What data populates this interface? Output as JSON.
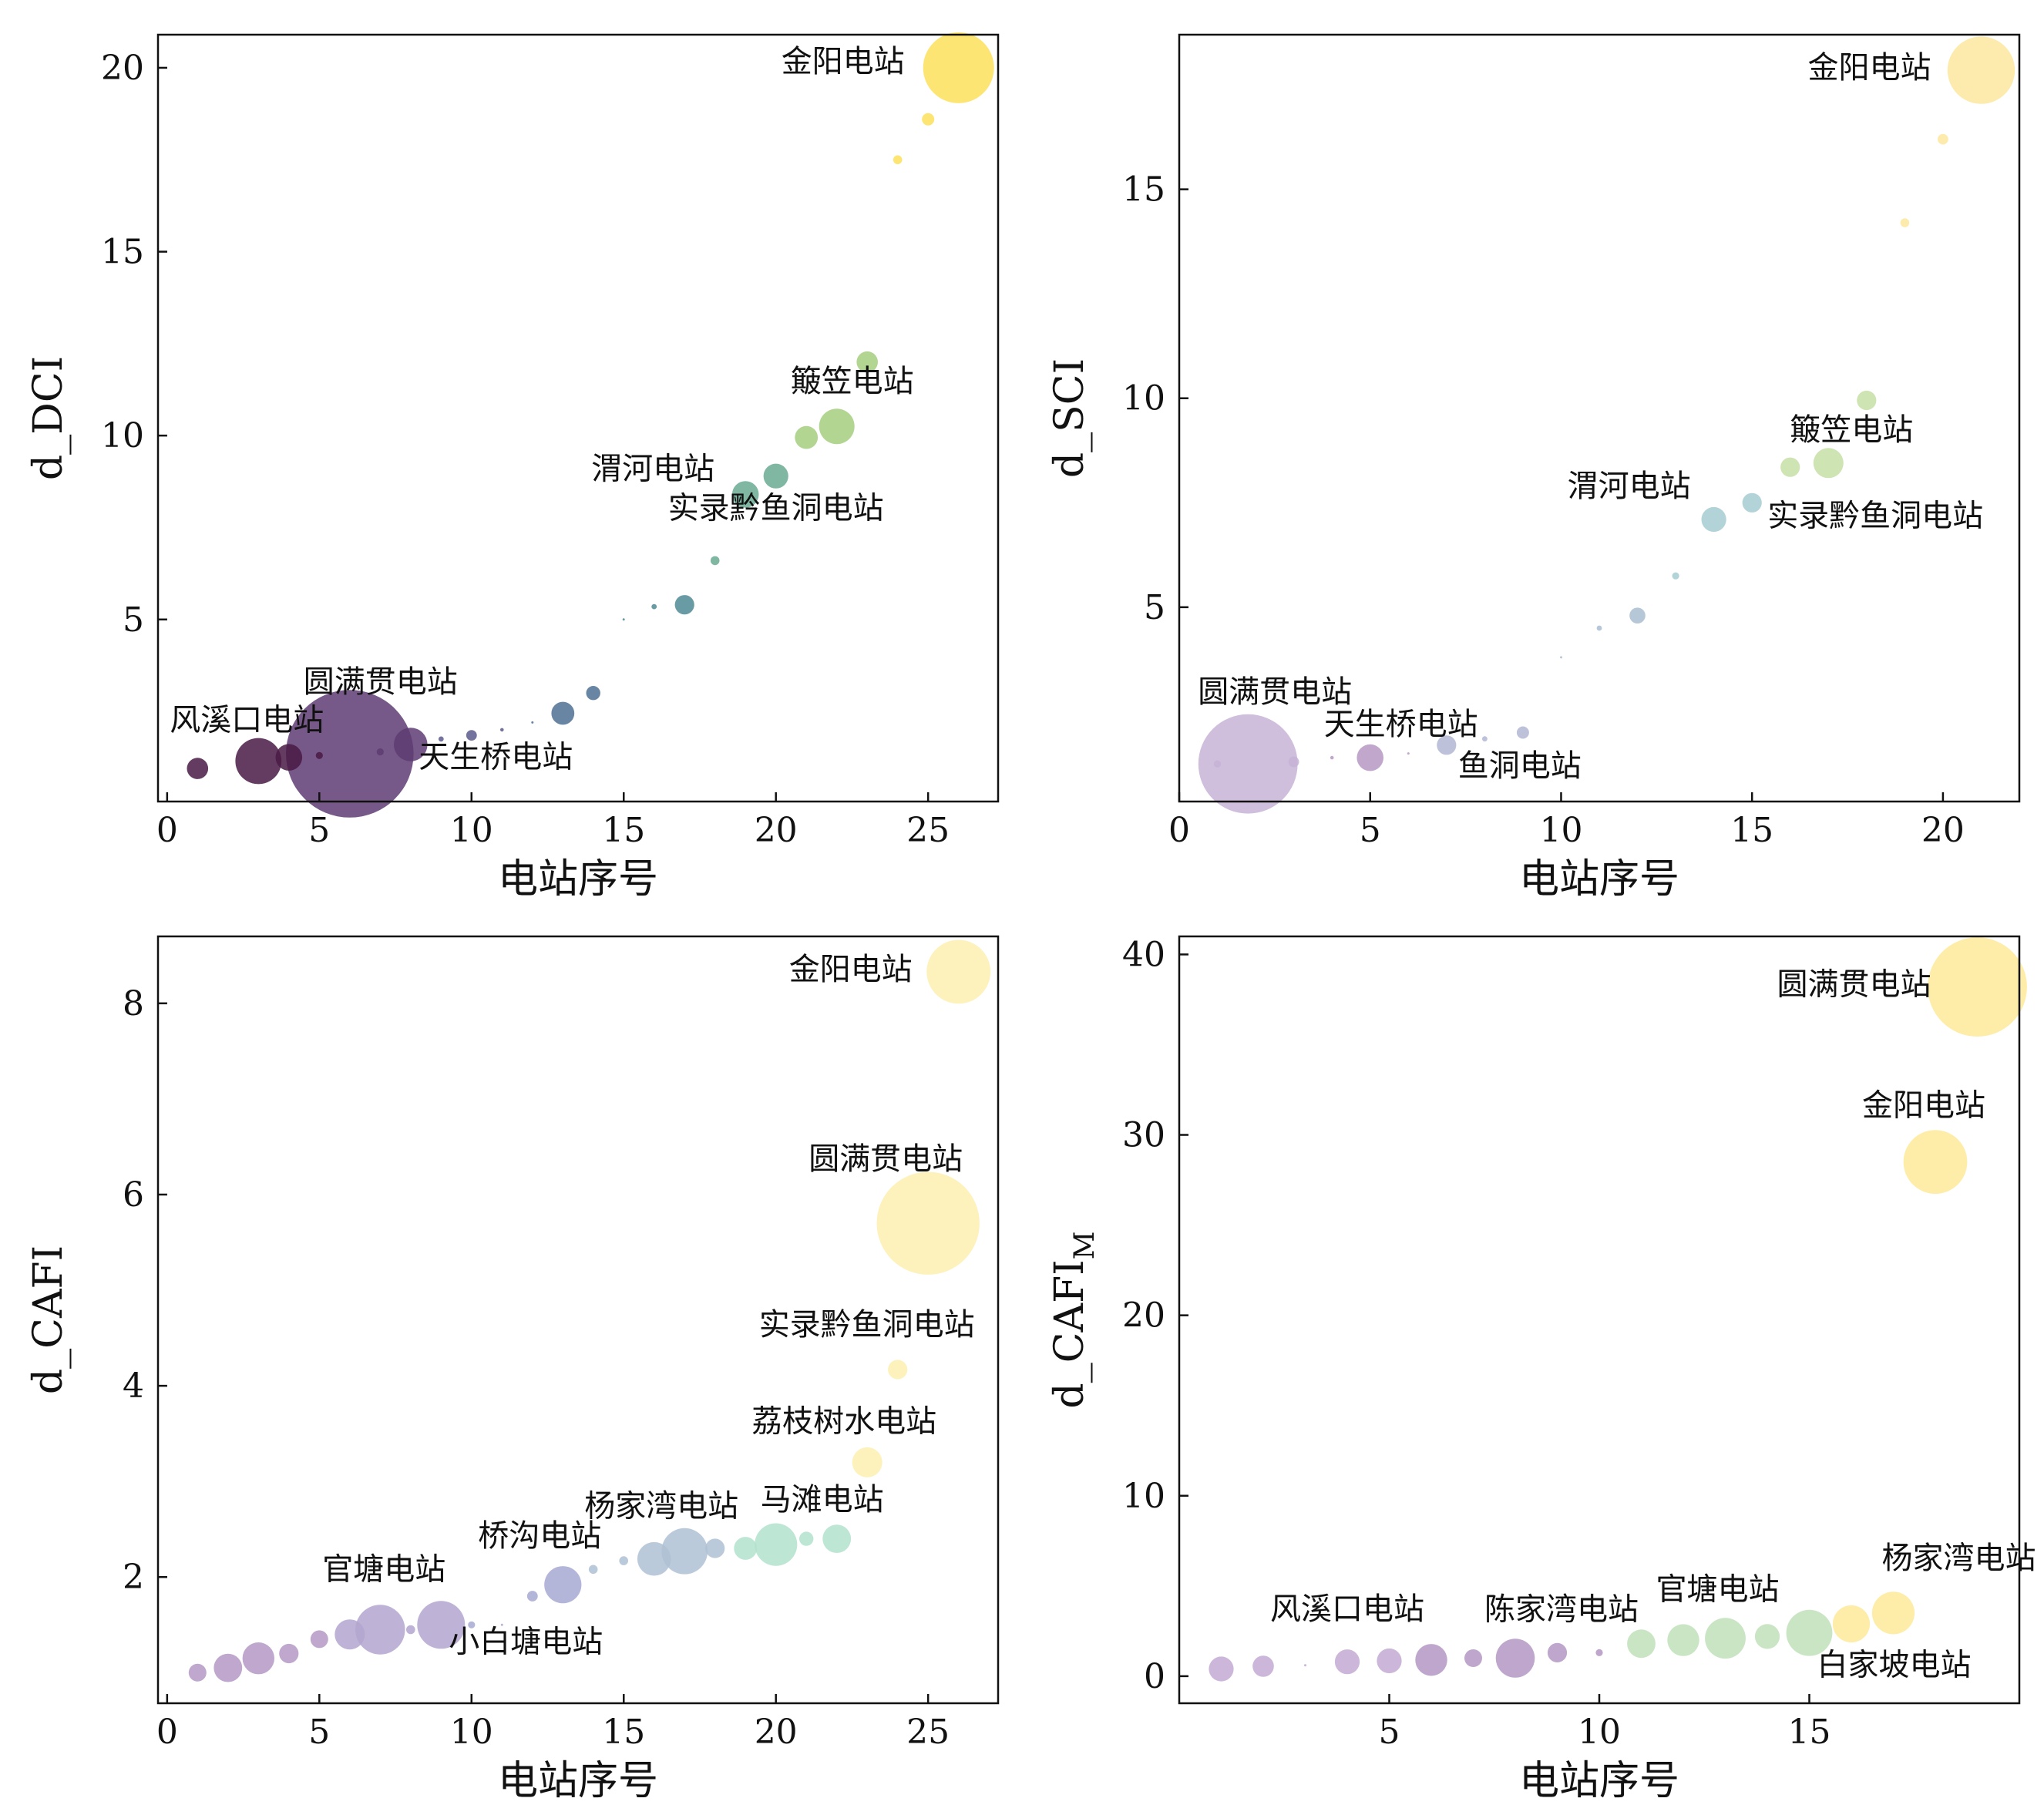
{
  "chart_data": [
    {
      "type": "scatter",
      "xlabel": "电站序号",
      "ylabel": "d_DCI",
      "xlim": [
        -0.3,
        27.3
      ],
      "ylim": [
        0.05,
        20.9
      ],
      "xticks": [
        0,
        5,
        10,
        15,
        20,
        25
      ],
      "yticks": [
        5,
        10,
        15,
        20
      ],
      "colors": [
        "#4a1a45",
        "#5e3c73",
        "#5b5b8c",
        "#4d7193",
        "#4f8a95",
        "#6aaa93",
        "#a5cf7f",
        "#fde05a"
      ],
      "points": [
        {
          "x": 1,
          "y": 0.95,
          "size": 12
        },
        {
          "x": 3,
          "y": 1.15,
          "size": 26
        },
        {
          "x": 4,
          "y": 1.25,
          "size": 15
        },
        {
          "x": 5,
          "y": 1.3,
          "size": 4
        },
        {
          "x": 6,
          "y": 1.35,
          "size": 72
        },
        {
          "x": 7,
          "y": 1.4,
          "size": 4
        },
        {
          "x": 8,
          "y": 1.6,
          "size": 19
        },
        {
          "x": 9,
          "y": 1.75,
          "size": 3
        },
        {
          "x": 10,
          "y": 1.85,
          "size": 6
        },
        {
          "x": 11,
          "y": 2.0,
          "size": 2
        },
        {
          "x": 12,
          "y": 2.2,
          "size": 1
        },
        {
          "x": 13,
          "y": 2.45,
          "size": 13
        },
        {
          "x": 14,
          "y": 3.0,
          "size": 8
        },
        {
          "x": 15,
          "y": 5.0,
          "size": 1
        },
        {
          "x": 16,
          "y": 5.35,
          "size": 3
        },
        {
          "x": 17,
          "y": 5.4,
          "size": 11
        },
        {
          "x": 18,
          "y": 6.6,
          "size": 5
        },
        {
          "x": 19,
          "y": 8.4,
          "size": 15
        },
        {
          "x": 20,
          "y": 8.9,
          "size": 14
        },
        {
          "x": 21,
          "y": 9.95,
          "size": 13
        },
        {
          "x": 22,
          "y": 10.25,
          "size": 20
        },
        {
          "x": 23,
          "y": 12.0,
          "size": 12
        },
        {
          "x": 24,
          "y": 17.5,
          "size": 5
        },
        {
          "x": 25,
          "y": 18.6,
          "size": 7
        },
        {
          "x": 26,
          "y": 20.0,
          "size": 40
        }
      ],
      "annotations": [
        {
          "text": "金阳电站",
          "x": 26,
          "y": 20.0
        },
        {
          "text": "簸笠电站",
          "x": 22,
          "y": 10.25
        },
        {
          "text": "渭河电站",
          "x": 19,
          "y": 8.4
        },
        {
          "text": "实录黔鱼洞电站",
          "x": 20,
          "y": 8.9
        },
        {
          "text": "圆满贯电站",
          "x": 6,
          "y": 1.35
        },
        {
          "text": "风溪口电站",
          "x": 3,
          "y": 1.15
        },
        {
          "text": "天生桥电站",
          "x": 7,
          "y": 1.4
        }
      ]
    },
    {
      "type": "scatter",
      "xlabel": "电站序号",
      "ylabel": "d_SCI",
      "xlim": [
        0,
        22
      ],
      "ylim": [
        0.35,
        18.7
      ],
      "xticks": [
        0,
        5,
        10,
        15,
        20
      ],
      "yticks": [
        5,
        10,
        15
      ],
      "colors": [
        "#c7b3d6",
        "#b798c4",
        "#b3b6d4",
        "#a9bdd1",
        "#a5cbd0",
        "#c5dfa6",
        "#fde7a0"
      ],
      "points": [
        {
          "x": 1,
          "y": 1.25,
          "size": 4
        },
        {
          "x": 1.8,
          "y": 1.25,
          "size": 56
        },
        {
          "x": 3,
          "y": 1.3,
          "size": 6
        },
        {
          "x": 4,
          "y": 1.4,
          "size": 2
        },
        {
          "x": 5,
          "y": 1.4,
          "size": 15
        },
        {
          "x": 6,
          "y": 1.5,
          "size": 1
        },
        {
          "x": 7,
          "y": 1.7,
          "size": 11
        },
        {
          "x": 8,
          "y": 1.85,
          "size": 3
        },
        {
          "x": 9,
          "y": 2.0,
          "size": 7
        },
        {
          "x": 10,
          "y": 3.8,
          "size": 1
        },
        {
          "x": 11,
          "y": 4.5,
          "size": 3
        },
        {
          "x": 12,
          "y": 4.8,
          "size": 9
        },
        {
          "x": 13,
          "y": 5.75,
          "size": 4
        },
        {
          "x": 14,
          "y": 7.1,
          "size": 14
        },
        {
          "x": 15,
          "y": 7.5,
          "size": 11
        },
        {
          "x": 16,
          "y": 8.35,
          "size": 11
        },
        {
          "x": 17,
          "y": 8.45,
          "size": 17
        },
        {
          "x": 18,
          "y": 9.95,
          "size": 11
        },
        {
          "x": 19,
          "y": 14.2,
          "size": 5
        },
        {
          "x": 20,
          "y": 16.2,
          "size": 6
        },
        {
          "x": 21,
          "y": 17.85,
          "size": 38
        }
      ],
      "annotations": [
        {
          "text": "金阳电站",
          "x": 21,
          "y": 17.85
        },
        {
          "text": "簸笠电站",
          "x": 17,
          "y": 8.45
        },
        {
          "text": "渭河电站",
          "x": 14,
          "y": 7.1
        },
        {
          "text": "实录黔鱼洞电站",
          "x": 15,
          "y": 7.5
        },
        {
          "text": "圆满贯电站",
          "x": 1.8,
          "y": 1.25
        },
        {
          "text": "天生桥电站",
          "x": 5,
          "y": 1.4
        },
        {
          "text": "鱼洞电站",
          "x": 7,
          "y": 1.7
        }
      ]
    },
    {
      "type": "scatter",
      "xlabel": "电站序号",
      "ylabel": "d_CAFI",
      "xlim": [
        -0.3,
        27.3
      ],
      "ylim": [
        0.68,
        8.7
      ],
      "xticks": [
        0,
        5,
        10,
        15,
        20,
        25
      ],
      "yticks": [
        2,
        4,
        6,
        8
      ],
      "colors": [
        "#b498c4",
        "#b3a4cf",
        "#a7a9d2",
        "#afc1d3",
        "#b1e2cd",
        "#fdefb0"
      ],
      "points": [
        {
          "x": 1,
          "y": 1.0,
          "size": 10
        },
        {
          "x": 2,
          "y": 1.05,
          "size": 16
        },
        {
          "x": 3,
          "y": 1.15,
          "size": 18
        },
        {
          "x": 4,
          "y": 1.2,
          "size": 11
        },
        {
          "x": 5,
          "y": 1.35,
          "size": 10
        },
        {
          "x": 6,
          "y": 1.4,
          "size": 17
        },
        {
          "x": 7,
          "y": 1.45,
          "size": 28
        },
        {
          "x": 8,
          "y": 1.45,
          "size": 5
        },
        {
          "x": 9,
          "y": 1.5,
          "size": 27
        },
        {
          "x": 10,
          "y": 1.5,
          "size": 4
        },
        {
          "x": 11,
          "y": 1.5,
          "size": 1
        },
        {
          "x": 12,
          "y": 1.8,
          "size": 6
        },
        {
          "x": 13,
          "y": 1.92,
          "size": 21
        },
        {
          "x": 14,
          "y": 2.08,
          "size": 5
        },
        {
          "x": 15,
          "y": 2.17,
          "size": 5
        },
        {
          "x": 16,
          "y": 2.19,
          "size": 19
        },
        {
          "x": 17,
          "y": 2.27,
          "size": 26
        },
        {
          "x": 18,
          "y": 2.3,
          "size": 11
        },
        {
          "x": 19,
          "y": 2.3,
          "size": 13
        },
        {
          "x": 20,
          "y": 2.34,
          "size": 24
        },
        {
          "x": 21,
          "y": 2.4,
          "size": 8
        },
        {
          "x": 22,
          "y": 2.4,
          "size": 16
        },
        {
          "x": 23,
          "y": 3.2,
          "size": 17
        },
        {
          "x": 24,
          "y": 4.17,
          "size": 11
        },
        {
          "x": 25,
          "y": 5.7,
          "size": 58
        },
        {
          "x": 26,
          "y": 8.33,
          "size": 36
        }
      ],
      "annotations": [
        {
          "text": "金阳电站",
          "x": 26,
          "y": 8.33
        },
        {
          "text": "圆满贯电站",
          "x": 25,
          "y": 5.7
        },
        {
          "text": "实录黔鱼洞电站",
          "x": 24,
          "y": 4.17
        },
        {
          "text": "荔枝树水电站",
          "x": 23,
          "y": 3.2
        },
        {
          "text": "杨家湾电站",
          "x": 17,
          "y": 2.27
        },
        {
          "text": "马滩电站",
          "x": 20,
          "y": 2.34
        },
        {
          "text": "桥沟电站",
          "x": 13,
          "y": 1.92
        },
        {
          "text": "官塘电站",
          "x": 7,
          "y": 1.45
        },
        {
          "text": "小白塘电站",
          "x": 9,
          "y": 1.5
        }
      ]
    },
    {
      "type": "scatter",
      "xlabel": "电站序号",
      "ylabel": "d_CAFI",
      "ylabel_sub": "M",
      "xlim": [
        0,
        20
      ],
      "ylim": [
        -1.5,
        41
      ],
      "xticks": [
        5,
        10,
        15
      ],
      "yticks": [
        0,
        10,
        20,
        30,
        40
      ],
      "colors": [
        "#c3a9d3",
        "#b497c4",
        "#bfe0ba",
        "#fdea9a"
      ],
      "points": [
        {
          "x": 1,
          "y": 0.4,
          "size": 14
        },
        {
          "x": 2,
          "y": 0.55,
          "size": 12
        },
        {
          "x": 3,
          "y": 0.6,
          "size": 1
        },
        {
          "x": 4,
          "y": 0.8,
          "size": 14
        },
        {
          "x": 5,
          "y": 0.85,
          "size": 14
        },
        {
          "x": 6,
          "y": 0.9,
          "size": 18
        },
        {
          "x": 7,
          "y": 1.0,
          "size": 10
        },
        {
          "x": 8,
          "y": 1.0,
          "size": 22
        },
        {
          "x": 9,
          "y": 1.3,
          "size": 11
        },
        {
          "x": 10,
          "y": 1.3,
          "size": 4
        },
        {
          "x": 11,
          "y": 1.8,
          "size": 16
        },
        {
          "x": 12,
          "y": 2.0,
          "size": 18
        },
        {
          "x": 13,
          "y": 2.1,
          "size": 23
        },
        {
          "x": 14,
          "y": 2.2,
          "size": 14
        },
        {
          "x": 15,
          "y": 2.4,
          "size": 26
        },
        {
          "x": 16,
          "y": 2.9,
          "size": 21
        },
        {
          "x": 17,
          "y": 3.5,
          "size": 24
        },
        {
          "x": 18,
          "y": 28.5,
          "size": 36
        },
        {
          "x": 19,
          "y": 38.2,
          "size": 56
        }
      ],
      "annotations": [
        {
          "text": "圆满贯电站",
          "x": 19,
          "y": 38.2
        },
        {
          "text": "金阳电站",
          "x": 18,
          "y": 28.5
        },
        {
          "text": "风溪口电站",
          "x": 4,
          "y": 0.8
        },
        {
          "text": "陈家湾电站",
          "x": 8,
          "y": 1.0
        },
        {
          "text": "官塘电站",
          "x": 13,
          "y": 2.1
        },
        {
          "text": "杨家湾电站",
          "x": 17,
          "y": 3.5
        },
        {
          "text": "白家坡电站",
          "x": 15,
          "y": 2.4
        }
      ]
    }
  ]
}
